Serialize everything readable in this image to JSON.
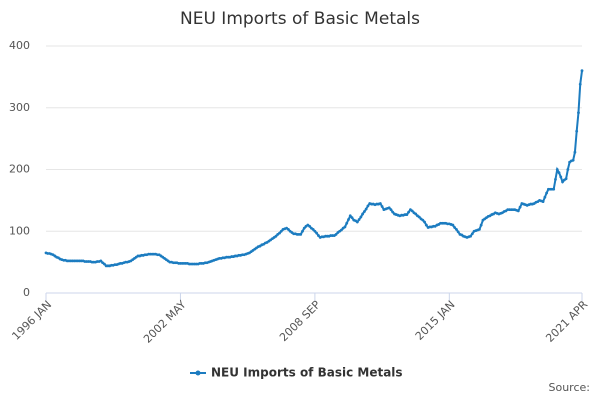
{
  "chart_data": {
    "type": "line",
    "title": "NEU Imports of Basic Metals",
    "source": "Source:",
    "categories": [
      "1996 JAN",
      null,
      null,
      null,
      null,
      null,
      null,
      null,
      null,
      null,
      null,
      null,
      null,
      null,
      null,
      null,
      null,
      null,
      null,
      null,
      null,
      null,
      null,
      null,
      null,
      null,
      null,
      null,
      null,
      null,
      null,
      null,
      null,
      null,
      null,
      null,
      null,
      null,
      null,
      null,
      null,
      null,
      null,
      null,
      null,
      null,
      null,
      null,
      null,
      null,
      null,
      null,
      null,
      null,
      null,
      null,
      null,
      null,
      null,
      null,
      null,
      null,
      null,
      null,
      null,
      null,
      null,
      null,
      null,
      null,
      null,
      null,
      null,
      null,
      null,
      null,
      "2002 MAY",
      null,
      null,
      null,
      null,
      null,
      null,
      null,
      null,
      null,
      null,
      null,
      null,
      null,
      null,
      null,
      null,
      null,
      null,
      null,
      null,
      null,
      null,
      null,
      null,
      null,
      null,
      null,
      null,
      null,
      null,
      null,
      null,
      null,
      null,
      null,
      null,
      null,
      null,
      null,
      null,
      null,
      null,
      null,
      null,
      null,
      null,
      null,
      null,
      null,
      null,
      null,
      null,
      null,
      null,
      null,
      null,
      null,
      null,
      null,
      null,
      null,
      null,
      null,
      null,
      null,
      null,
      null,
      null,
      null,
      null,
      null,
      null,
      null,
      null,
      null,
      "2008 SEP",
      null,
      null,
      null,
      null,
      null,
      null,
      null,
      null,
      null,
      null,
      null,
      null,
      null,
      null,
      null,
      null,
      null,
      null,
      null,
      null,
      null,
      null,
      null,
      null,
      null,
      null,
      null,
      null,
      null,
      null,
      null,
      null,
      null,
      null,
      null,
      null,
      null,
      null,
      null,
      null,
      null,
      null,
      null,
      null,
      null,
      null,
      null,
      null,
      null,
      null,
      null,
      null,
      null,
      null,
      null,
      null,
      null,
      null,
      null,
      null,
      null,
      null,
      null,
      null,
      null,
      null,
      null,
      null,
      null,
      null,
      null,
      null,
      null,
      null,
      null,
      "2015 JAN",
      null,
      null,
      null,
      null,
      null,
      null,
      null,
      null,
      null,
      null,
      null,
      null,
      null,
      null,
      null,
      null,
      null,
      null,
      null,
      null,
      null,
      null,
      null,
      null,
      null,
      null,
      null,
      null,
      null,
      null,
      null,
      null,
      null,
      null,
      null,
      null,
      null,
      null,
      null,
      null,
      null,
      null,
      null,
      null,
      null,
      null,
      null,
      null,
      null,
      null,
      null,
      null,
      null,
      null,
      null,
      null,
      null,
      null,
      null,
      null,
      null,
      null,
      null,
      null,
      null,
      null,
      null,
      null,
      null,
      null,
      null,
      null,
      null,
      null,
      "2021 APR"
    ],
    "series": [
      {
        "name": "NEU Imports of Basic Metals",
        "color": "#1c7cc0",
        "values": [
          65,
          64,
          64,
          63,
          62,
          60,
          58,
          57,
          55,
          54,
          53,
          53,
          52,
          52,
          52,
          52,
          52,
          52,
          52,
          52,
          52,
          52,
          51,
          51,
          51,
          51,
          50,
          50,
          50,
          51,
          51,
          52,
          49,
          47,
          44,
          44,
          44,
          45,
          45,
          46,
          46,
          47,
          48,
          48,
          49,
          50,
          50,
          51,
          52,
          54,
          56,
          58,
          60,
          60,
          61,
          61,
          62,
          62,
          63,
          63,
          63,
          63,
          63,
          62,
          62,
          60,
          58,
          56,
          54,
          52,
          50,
          50,
          49,
          49,
          49,
          48,
          48,
          48,
          48,
          48,
          48,
          47,
          47,
          47,
          47,
          47,
          47,
          48,
          48,
          48,
          49,
          49,
          50,
          51,
          52,
          53,
          54,
          55,
          56,
          56,
          57,
          57,
          58,
          58,
          58,
          59,
          59,
          60,
          60,
          61,
          61,
          62,
          62,
          63,
          64,
          65,
          67,
          69,
          71,
          73,
          75,
          76,
          78,
          79,
          81,
          82,
          84,
          86,
          88,
          90,
          92,
          95,
          97,
          100,
          103,
          104,
          105,
          103,
          100,
          98,
          96,
          96,
          95,
          95,
          95,
          100,
          105,
          108,
          110,
          108,
          105,
          103,
          100,
          97,
          93,
          90,
          91,
          91,
          92,
          92,
          92,
          93,
          93,
          93,
          95,
          98,
          100,
          102,
          105,
          107,
          113,
          119,
          125,
          122,
          118,
          117,
          115,
          119,
          123,
          128,
          132,
          136,
          141,
          145,
          144,
          144,
          143,
          144,
          144,
          145,
          140,
          135,
          136,
          137,
          138,
          135,
          131,
          128,
          127,
          126,
          125,
          126,
          126,
          127,
          127,
          131,
          135,
          133,
          130,
          128,
          125,
          123,
          120,
          118,
          115,
          110,
          106,
          107,
          107,
          108,
          108,
          110,
          111,
          113,
          113,
          113,
          113,
          112,
          112,
          111,
          110,
          106,
          103,
          99,
          95,
          94,
          92,
          91,
          90,
          91,
          92,
          96,
          100,
          101,
          102,
          103,
          110,
          118,
          120,
          122,
          124,
          125,
          127,
          128,
          130,
          129,
          128,
          129,
          130,
          132,
          133,
          135,
          135,
          135,
          135,
          135,
          134,
          133,
          139,
          145,
          144,
          143,
          142,
          143,
          144,
          144,
          145,
          147,
          148,
          150,
          149,
          148,
          155,
          162,
          168,
          168,
          168,
          168,
          184,
          200,
          195,
          188,
          180,
          183,
          185,
          200,
          212,
          214,
          215,
          228,
          262,
          292,
          338,
          360
        ]
      }
    ],
    "ylim": [
      0,
      400
    ],
    "yticks": [
      0,
      100,
      200,
      300,
      400
    ],
    "grid": true
  }
}
